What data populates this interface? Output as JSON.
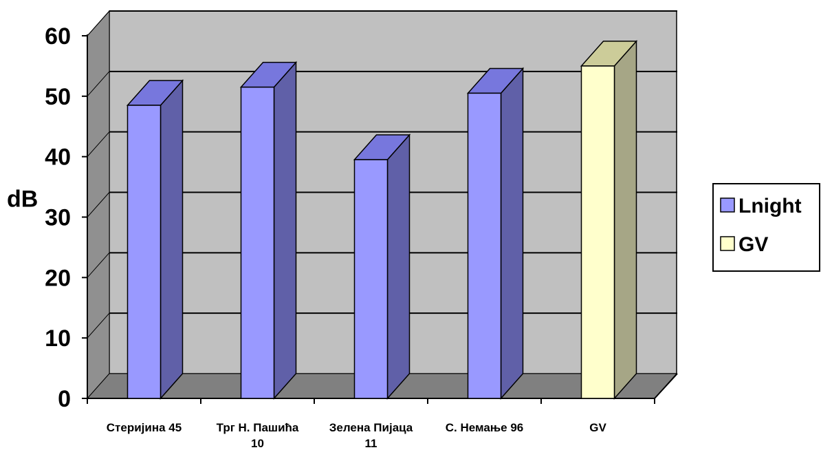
{
  "chart_data": {
    "type": "bar",
    "title": "",
    "xlabel": "",
    "ylabel": "dB",
    "ylim": [
      0,
      60
    ],
    "yticks": [
      "0",
      "10",
      "20",
      "30",
      "40",
      "50",
      "60"
    ],
    "grid": true,
    "three_d": true,
    "legend_position": "right",
    "categories": [
      [
        "Стеријина 45"
      ],
      [
        "Трг Н. Пашића",
        "10"
      ],
      [
        "Зелена Пијаца",
        "11"
      ],
      [
        "С. Немање 96"
      ],
      [
        "GV"
      ]
    ],
    "series": [
      {
        "name": "Lnight",
        "color": "#9999ff",
        "values": [
          48.5,
          51.5,
          39.5,
          50.5,
          null
        ]
      },
      {
        "name": "GV",
        "color": "#ffffcc",
        "values": [
          null,
          null,
          null,
          null,
          55
        ]
      }
    ],
    "colors": {
      "wall": "#c0c0c0",
      "side_wall": "#909090",
      "floor": "#808080",
      "lnight_side": "#6060a8",
      "lnight_top": "#7777dd",
      "gv_side": "#a6a686",
      "gv_top": "#cccc99"
    }
  }
}
